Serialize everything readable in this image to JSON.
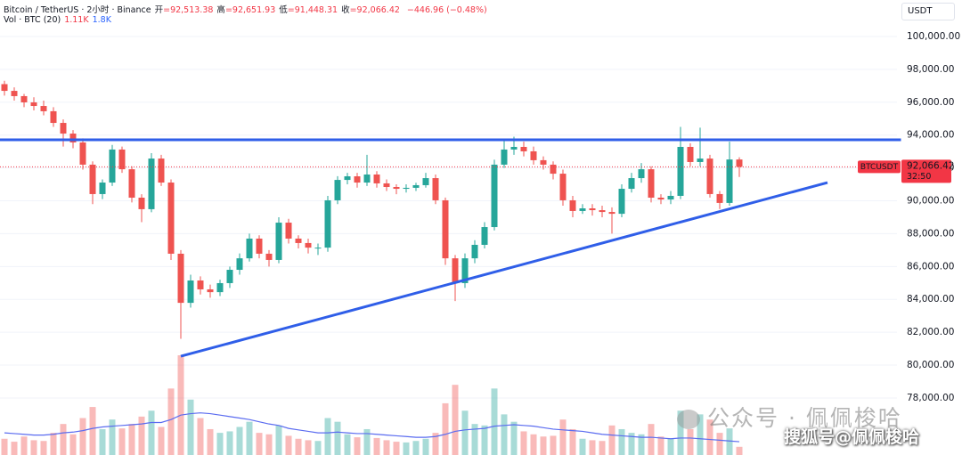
{
  "chart_data": {
    "type": "candlestick",
    "title": "Bitcoin / TetherUS · 2小时 · Binance",
    "ohlc_legend": [
      {
        "key": "开",
        "value": "=92,513.38"
      },
      {
        "key": "高",
        "value": "=92,651.93"
      },
      {
        "key": "低",
        "value": "=91,448.31"
      },
      {
        "key": "收",
        "value": "=92,066.42"
      }
    ],
    "change": "−446.96 (−0.48%)",
    "volume_legend": {
      "name": "Vol · BTC (20)",
      "volume": "1.11K",
      "ma": "1.8K"
    },
    "currency": "USDT",
    "ylim": [
      74530,
      102220
    ],
    "yticks": [
      {
        "value": 78000,
        "label": "78,000.00"
      },
      {
        "value": 80000,
        "label": "80,000.00"
      },
      {
        "value": 82000,
        "label": "82,000.00"
      },
      {
        "value": 84000,
        "label": "84,000.00"
      },
      {
        "value": 86000,
        "label": "86,000.00"
      },
      {
        "value": 88000,
        "label": "88,000.00"
      },
      {
        "value": 90000,
        "label": "90,000.00"
      },
      {
        "value": 92000,
        "label": "92,000.00"
      },
      {
        "value": 94000,
        "label": "94,000.00"
      },
      {
        "value": 96000,
        "label": "96,000.00"
      },
      {
        "value": 98000,
        "label": "98,000.00"
      },
      {
        "value": 100000,
        "label": "100,000.00"
      }
    ],
    "grid": true,
    "up_color": "#26a69a",
    "down_color": "#ef5350",
    "open": [
      97100,
      96690,
      96370,
      95990,
      95770,
      95450,
      94740,
      94090,
      93550,
      92200,
      90410,
      91110,
      93120,
      91920,
      90190,
      89490,
      92570,
      91110,
      86780,
      83790,
      85150,
      84610,
      84440,
      84990,
      85800,
      86500,
      87700,
      86780,
      86400,
      88670,
      87700,
      87430,
      87150,
      87150,
      90030,
      91270,
      91490,
      91110,
      91600,
      91060,
      90840,
      90730,
      90790,
      90950,
      91380,
      90030,
      86500,
      84990,
      86500,
      87320,
      88400,
      92200,
      93120,
      93280,
      93010,
      92470,
      92200,
      91650,
      90030,
      89380,
      89540,
      89430,
      89320,
      89210,
      90730,
      91380,
      91920,
      90190,
      90080,
      90300,
      93280,
      92360,
      92570,
      90410,
      89870,
      92513.38
    ],
    "high": [
      97300,
      96900,
      96500,
      96300,
      96100,
      95700,
      94950,
      94300,
      93800,
      92400,
      91300,
      93400,
      93300,
      92100,
      90400,
      92900,
      92800,
      91300,
      87000,
      85500,
      85400,
      84900,
      85200,
      86000,
      86800,
      88000,
      87900,
      87000,
      89000,
      88900,
      87900,
      87700,
      87400,
      90300,
      91500,
      91700,
      91700,
      92800,
      91800,
      91300,
      91000,
      91000,
      91100,
      91700,
      91600,
      90200,
      86700,
      86800,
      87600,
      88700,
      92500,
      93700,
      93900,
      93600,
      93300,
      92700,
      92400,
      91900,
      90300,
      89800,
      89800,
      89700,
      89600,
      91000,
      91700,
      92300,
      92100,
      90400,
      90600,
      94500,
      93500,
      94450,
      92800,
      90600,
      93600,
      92651.93
    ],
    "low": [
      96400,
      96100,
      95700,
      95500,
      95200,
      94500,
      93300,
      93200,
      91900,
      89800,
      90100,
      90900,
      91700,
      89900,
      88700,
      89300,
      90900,
      86400,
      81600,
      83500,
      84300,
      84100,
      84200,
      84700,
      85500,
      86300,
      86500,
      86000,
      86200,
      87400,
      87100,
      86800,
      86700,
      86900,
      89800,
      91000,
      90800,
      90900,
      90800,
      90600,
      90400,
      90500,
      90600,
      90800,
      89800,
      86100,
      83900,
      84700,
      86200,
      87100,
      88200,
      92000,
      92800,
      92700,
      92200,
      91900,
      91300,
      89700,
      89000,
      89200,
      89100,
      89000,
      88000,
      89000,
      90500,
      91100,
      89900,
      89800,
      89800,
      90100,
      92100,
      92100,
      90200,
      89500,
      89700,
      91448.31
    ],
    "close": [
      96690,
      96370,
      95990,
      95770,
      95450,
      94740,
      94090,
      93550,
      92200,
      90410,
      91110,
      93120,
      91920,
      90190,
      89490,
      92570,
      91110,
      86780,
      83790,
      85150,
      84610,
      84440,
      84990,
      85800,
      86500,
      87700,
      86780,
      86400,
      88670,
      87700,
      87430,
      87150,
      87150,
      90030,
      91270,
      91490,
      91110,
      91600,
      91060,
      90840,
      90730,
      90790,
      90950,
      91380,
      90030,
      86500,
      84990,
      86500,
      87320,
      88400,
      92200,
      93120,
      93280,
      93010,
      92470,
      92200,
      91650,
      90030,
      89380,
      89540,
      89430,
      89320,
      89210,
      90730,
      91380,
      91920,
      90190,
      90080,
      90300,
      93280,
      92360,
      92570,
      90410,
      89870,
      92513.38,
      92066.42
    ],
    "volume": [
      2200,
      1800,
      2500,
      2000,
      1900,
      3000,
      4200,
      2800,
      5000,
      6500,
      3500,
      4800,
      3600,
      4200,
      5200,
      6000,
      3800,
      9000,
      13500,
      7500,
      5000,
      3500,
      3000,
      3200,
      3800,
      4500,
      3000,
      2800,
      4000,
      2600,
      2200,
      2000,
      1900,
      5000,
      4500,
      2800,
      2400,
      3500,
      2300,
      2000,
      1800,
      1700,
      1900,
      2200,
      3000,
      7000,
      9500,
      6000,
      4200,
      4000,
      9000,
      5500,
      4500,
      3200,
      2800,
      2500,
      2600,
      4800,
      3500,
      2200,
      2000,
      1900,
      4000,
      3500,
      3000,
      2800,
      4200,
      2500,
      2200,
      6000,
      3500,
      5500,
      4800,
      3000,
      3600,
      1110
    ],
    "volume_ma": [
      3000,
      2900,
      2800,
      2700,
      2700,
      2800,
      3000,
      3100,
      3300,
      3600,
      3800,
      3900,
      4000,
      4100,
      4200,
      4400,
      4400,
      4800,
      5400,
      5600,
      5700,
      5600,
      5400,
      5200,
      5000,
      4800,
      4500,
      4200,
      4000,
      3600,
      3400,
      3200,
      3000,
      3000,
      3100,
      3000,
      2900,
      2900,
      2800,
      2700,
      2600,
      2500,
      2400,
      2400,
      2500,
      2800,
      3200,
      3400,
      3500,
      3600,
      3900,
      4000,
      4100,
      4000,
      3900,
      3700,
      3500,
      3400,
      3300,
      3200,
      3000,
      2800,
      2700,
      2600,
      2500,
      2400,
      2400,
      2300,
      2200,
      2300,
      2300,
      2200,
      2100,
      2000,
      1900,
      1800
    ],
    "volume_ma_color": "#5b6cf0",
    "trendlines": [
      {
        "x": [
          -0.5,
          91.5
        ],
        "y": [
          93710,
          93710
        ],
        "color": "#2f5ee8"
      },
      {
        "x": [
          18,
          84
        ],
        "y": [
          80540,
          91110
        ],
        "color": "#2f5ee8"
      }
    ],
    "last_price": {
      "value": 92066.42,
      "label": "92,066.42",
      "symbol": "BTCUSDT",
      "countdown": "32:50",
      "color": "#f23645"
    }
  },
  "watermarks": {
    "wechat": "公众号 · 佩佩梭哈",
    "sohu": "搜狐号@佩佩梭哈"
  }
}
